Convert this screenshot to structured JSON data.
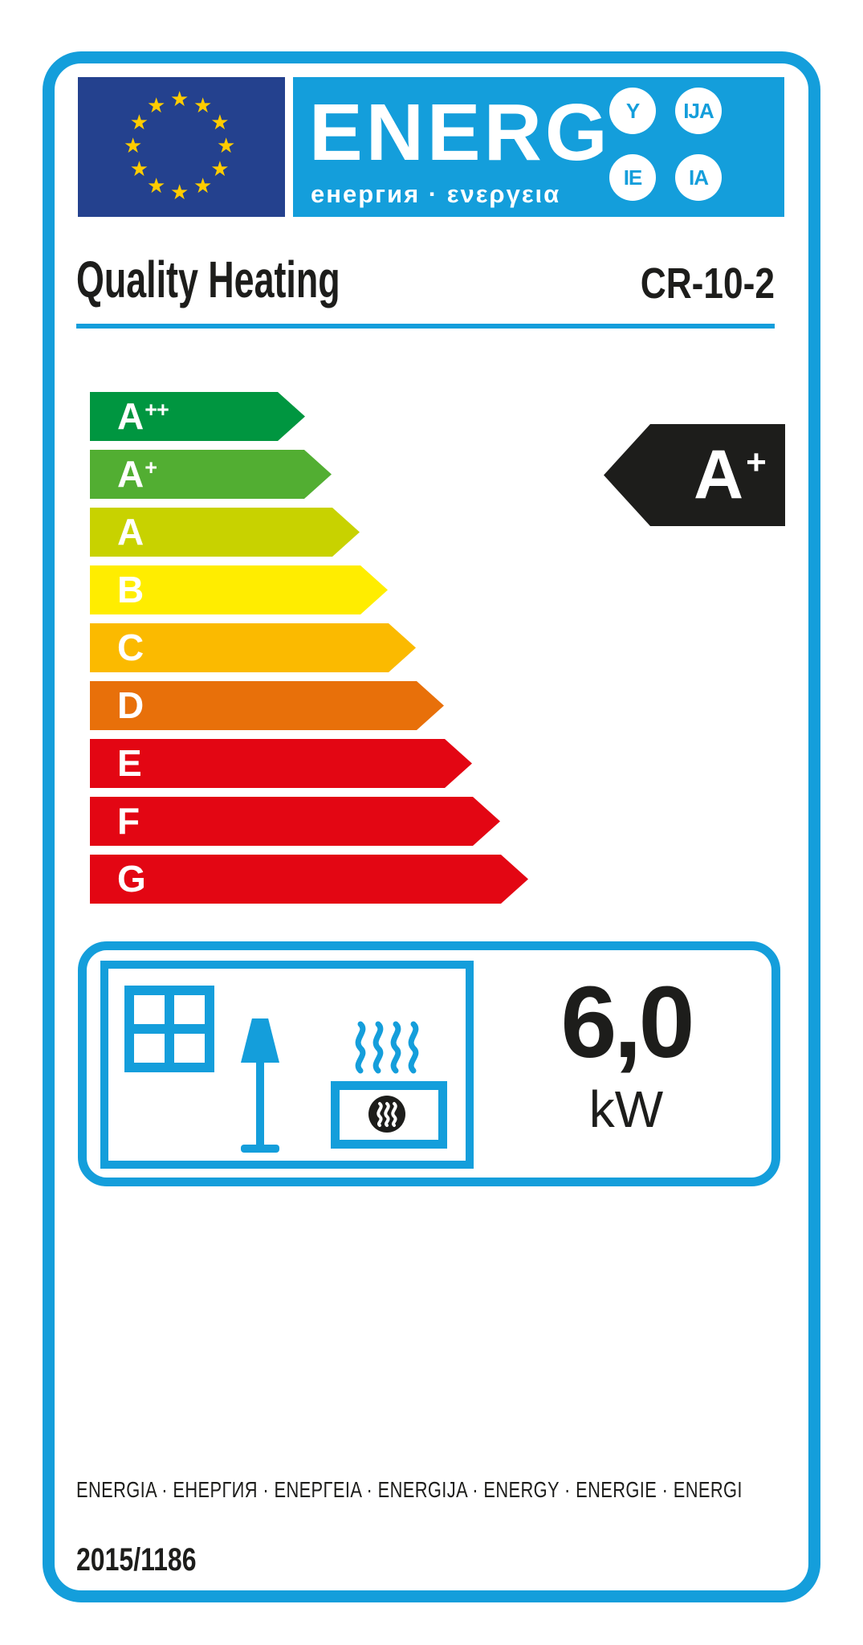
{
  "label": {
    "logo": {
      "text": "ENERG",
      "subtext": "енергия · ενεργεια",
      "badges": [
        "Y",
        "IJA",
        "IE",
        "IA"
      ]
    },
    "product": {
      "brand": "Quality Heating",
      "model": "CR-10-2"
    },
    "rating": {
      "letter": "A",
      "sup": "+"
    },
    "scale": [
      {
        "letter": "A",
        "sup": "++",
        "color": "#009640"
      },
      {
        "letter": "A",
        "sup": "+",
        "color": "#52ae32"
      },
      {
        "letter": "A",
        "sup": "",
        "color": "#c8d200"
      },
      {
        "letter": "B",
        "sup": "",
        "color": "#ffed00"
      },
      {
        "letter": "C",
        "sup": "",
        "color": "#fbba00"
      },
      {
        "letter": "D",
        "sup": "",
        "color": "#e8700a"
      },
      {
        "letter": "E",
        "sup": "",
        "color": "#e30613"
      },
      {
        "letter": "F",
        "sup": "",
        "color": "#e30613"
      },
      {
        "letter": "G",
        "sup": "",
        "color": "#e30613"
      }
    ],
    "power": {
      "value": "6,0",
      "unit": "kW"
    },
    "footer": {
      "languages": "ENERGIA · ЕНЕРГИЯ · ΕΝΕΡΓΕΙΑ · ENERGIJA · ENERGY · ENERGIE · ENERGI",
      "regulation": "2015/1186"
    },
    "colors": {
      "accent": "#149edb",
      "eu_flag_blue": "#24418e",
      "star_yellow": "#ffcc00",
      "black": "#1d1d1b"
    }
  }
}
